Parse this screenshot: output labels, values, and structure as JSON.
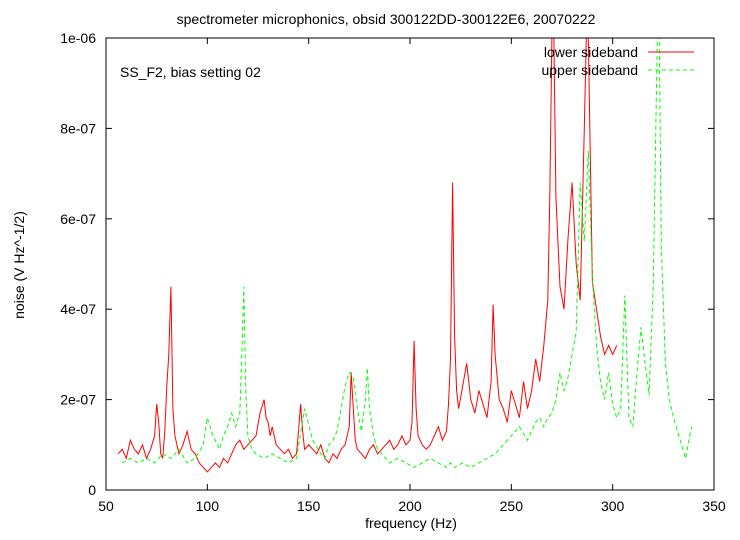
{
  "chart_data": {
    "type": "line",
    "title": "spectrometer microphonics, obsid 300122DD-300122E6, 20070222",
    "annotation": "SS_F2, bias setting 02",
    "xlabel": "frequency (Hz)",
    "ylabel": "noise (V Hz^-1/2)",
    "xlim": [
      50,
      350
    ],
    "ylim": [
      0,
      1e-06
    ],
    "x_ticks": [
      50,
      100,
      150,
      200,
      250,
      300,
      350
    ],
    "x_tick_labels": [
      "50",
      "100",
      "150",
      "200",
      "250",
      "300",
      "350"
    ],
    "y_ticks": [
      0,
      2e-07,
      4e-07,
      6e-07,
      8e-07,
      1e-06
    ],
    "y_tick_labels": [
      "0",
      "2e-07",
      "4e-07",
      "6e-07",
      "8e-07",
      "1e-06"
    ],
    "legend_position": "top-right",
    "grid": false,
    "series": [
      {
        "name": "lower sideband",
        "color": "#ff0000",
        "dash": "solid",
        "x": [
          56,
          58,
          60,
          62,
          64,
          66,
          68,
          70,
          72,
          74,
          75,
          76,
          77,
          78,
          79,
          80,
          81,
          82,
          83,
          84,
          86,
          88,
          90,
          92,
          94,
          96,
          98,
          100,
          102,
          104,
          106,
          108,
          110,
          112,
          114,
          116,
          118,
          120,
          122,
          124,
          126,
          128,
          129,
          130,
          131,
          132,
          134,
          136,
          138,
          140,
          142,
          144,
          145,
          146,
          147,
          148,
          150,
          152,
          154,
          156,
          158,
          160,
          162,
          164,
          166,
          168,
          170,
          171,
          172,
          173,
          174,
          176,
          178,
          180,
          182,
          184,
          186,
          188,
          190,
          192,
          194,
          196,
          198,
          200,
          201,
          202,
          203,
          204,
          206,
          208,
          210,
          212,
          214,
          216,
          218,
          219,
          220,
          221,
          222,
          223,
          224,
          226,
          228,
          230,
          232,
          234,
          236,
          238,
          240,
          241,
          242,
          244,
          246,
          248,
          250,
          252,
          254,
          256,
          258,
          260,
          262,
          264,
          266,
          268,
          269,
          270,
          271,
          272,
          273,
          274,
          276,
          278,
          280,
          282,
          284,
          286,
          287,
          288,
          290,
          292,
          294,
          296,
          298,
          300,
          302
        ],
        "y": [
          8e-08,
          9e-08,
          7e-08,
          1.1e-07,
          9e-08,
          8e-08,
          1e-07,
          7e-08,
          9e-08,
          1.2e-07,
          1.9e-07,
          1.5e-07,
          8e-08,
          7e-08,
          1.3e-07,
          2.3e-07,
          3e-07,
          4.5e-07,
          1.8e-07,
          1.2e-07,
          8e-08,
          1e-07,
          1.3e-07,
          9e-08,
          8e-08,
          6e-08,
          5e-08,
          4e-08,
          5e-08,
          6e-08,
          5e-08,
          7e-08,
          6e-08,
          8e-08,
          1e-07,
          1.1e-07,
          9e-08,
          1e-07,
          1.1e-07,
          1.2e-07,
          1.7e-07,
          2e-07,
          1.6e-07,
          1.5e-07,
          1.2e-07,
          1.4e-07,
          1e-07,
          9e-08,
          8e-08,
          9e-08,
          7e-08,
          8e-08,
          1.3e-07,
          1.9e-07,
          1.3e-07,
          9e-08,
          1e-07,
          9e-08,
          8e-08,
          1e-07,
          7e-08,
          6e-08,
          8e-08,
          7e-08,
          9e-08,
          1e-07,
          1.4e-07,
          2.6e-07,
          1.8e-07,
          1.1e-07,
          9e-08,
          8e-08,
          7e-08,
          9e-08,
          1e-07,
          8e-08,
          9e-08,
          1e-07,
          1.1e-07,
          9e-08,
          1e-07,
          1.2e-07,
          1e-07,
          1.1e-07,
          1.5e-07,
          3.3e-07,
          1.8e-07,
          1.2e-07,
          1e-07,
          9e-08,
          1e-07,
          1.2e-07,
          1.4e-07,
          1.1e-07,
          1.3e-07,
          1.9e-07,
          2.9e-07,
          6.8e-07,
          3.4e-07,
          2.2e-07,
          1.8e-07,
          2.3e-07,
          2.8e-07,
          2e-07,
          1.7e-07,
          2.2e-07,
          1.9e-07,
          1.6e-07,
          2.4e-07,
          4.1e-07,
          3e-07,
          2e-07,
          1.8e-07,
          1.5e-07,
          2.2e-07,
          1.9e-07,
          1.6e-07,
          2.4e-07,
          1.8e-07,
          2.2e-07,
          2.9e-07,
          2.4e-07,
          3.2e-07,
          4.2e-07,
          6.5e-07,
          1e-06,
          1e-06,
          6.5e-07,
          5.5e-07,
          4.5e-07,
          4e-07,
          5.6e-07,
          6.8e-07,
          5e-07,
          4.2e-07,
          8e-07,
          1e-06,
          1e-06,
          4.6e-07,
          4e-07,
          3.4e-07,
          3e-07,
          3.2e-07,
          3e-07,
          3.2e-07
        ]
      },
      {
        "name": "upper sideband",
        "color": "#00ff00",
        "dash": "dashed",
        "x": [
          58,
          62,
          66,
          70,
          74,
          78,
          82,
          86,
          90,
          94,
          98,
          100,
          102,
          104,
          106,
          108,
          110,
          112,
          114,
          116,
          117,
          118,
          119,
          120,
          122,
          124,
          128,
          132,
          136,
          140,
          144,
          148,
          152,
          156,
          158,
          160,
          162,
          164,
          166,
          168,
          170,
          172,
          174,
          176,
          178,
          179,
          180,
          182,
          184,
          186,
          190,
          194,
          198,
          202,
          206,
          210,
          214,
          218,
          220,
          222,
          226,
          230,
          234,
          238,
          242,
          246,
          250,
          254,
          258,
          262,
          264,
          266,
          268,
          270,
          272,
          274,
          276,
          278,
          280,
          282,
          284,
          286,
          288,
          290,
          292,
          294,
          296,
          298,
          300,
          302,
          304,
          306,
          308,
          310,
          312,
          314,
          316,
          318,
          320,
          322,
          323,
          324,
          326,
          328,
          330,
          332,
          334,
          336,
          338,
          339
        ],
        "y": [
          6e-08,
          7e-08,
          6e-08,
          7e-08,
          6e-08,
          8e-08,
          7e-08,
          9e-08,
          6e-08,
          7e-08,
          1e-07,
          1.6e-07,
          1.3e-07,
          1.1e-07,
          9e-08,
          1.2e-07,
          1.4e-07,
          1.7e-07,
          1.4e-07,
          1.7e-07,
          3e-07,
          4.5e-07,
          2.2e-07,
          1.2e-07,
          9e-08,
          8e-08,
          7e-08,
          8e-08,
          7e-08,
          6e-08,
          7e-08,
          1.8e-07,
          1.1e-07,
          8e-08,
          7e-08,
          1e-07,
          1.1e-07,
          1.3e-07,
          1.8e-07,
          2.3e-07,
          2.6e-07,
          2.5e-07,
          1.8e-07,
          1.3e-07,
          2e-07,
          2.7e-07,
          1.8e-07,
          1.2e-07,
          9e-08,
          8e-08,
          6e-08,
          7e-08,
          6e-08,
          5e-08,
          6e-08,
          7e-08,
          6e-08,
          5e-08,
          6e-08,
          5e-08,
          6e-08,
          5e-08,
          6e-08,
          7e-08,
          8e-08,
          1e-07,
          1.2e-07,
          1.4e-07,
          1.1e-07,
          1.5e-07,
          1.6e-07,
          1.4e-07,
          1.6e-07,
          1.7e-07,
          2e-07,
          2.6e-07,
          2.2e-07,
          2.5e-07,
          3e-07,
          3.5e-07,
          6.8e-07,
          5.5e-07,
          7.5e-07,
          4.7e-07,
          3.2e-07,
          2.4e-07,
          2e-07,
          2.6e-07,
          1.9e-07,
          1.6e-07,
          1.8e-07,
          4.3e-07,
          1.6e-07,
          1.4e-07,
          2.6e-07,
          3.6e-07,
          2.8e-07,
          2.1e-07,
          4.5e-07,
          1e-06,
          1e-06,
          5.4e-07,
          2.8e-07,
          2e-07,
          1.6e-07,
          1.3e-07,
          1e-07,
          7e-08,
          1.2e-07,
          1.4e-07
        ]
      }
    ]
  }
}
